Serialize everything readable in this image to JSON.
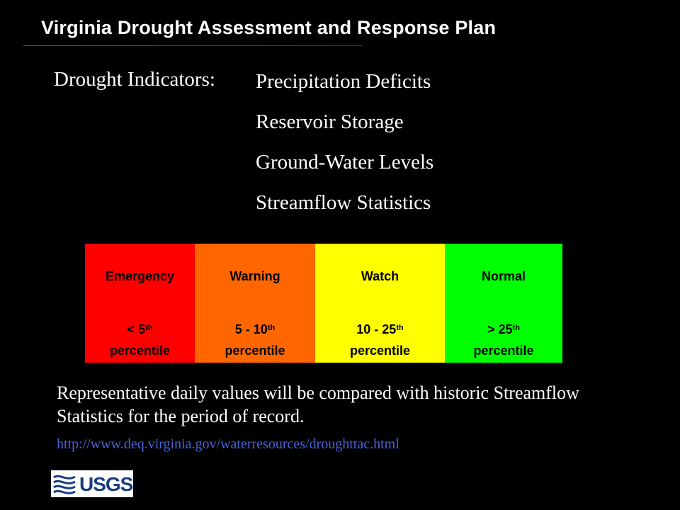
{
  "slide": {
    "title": "Virginia Drought Assessment and Response Plan",
    "indicators_label": "Drought Indicators:",
    "indicators": [
      "Precipitation Deficits",
      "Reservoir Storage",
      "Ground-Water Levels",
      "Streamflow Statistics"
    ],
    "description": "Representative daily values will be compared with historic Streamflow Statistics for the period of record.",
    "url": "http://www.deq.virginia.gov/waterresources/droughttac.html",
    "logo_text": "USGS"
  },
  "levels": [
    {
      "name": "Emergency",
      "range": "< 5",
      "sup": "th",
      "unit": "percentile",
      "color": "#ff0000"
    },
    {
      "name": "Warning",
      "range": "5 - 10",
      "sup": "th",
      "unit": "percentile",
      "color": "#ff6600"
    },
    {
      "name": "Watch",
      "range": "10 - 25",
      "sup": "th",
      "unit": "percentile",
      "color": "#ffff00"
    },
    {
      "name": "Normal",
      "range": "> 25",
      "sup": "th",
      "unit": "percentile",
      "color": "#00ff00"
    }
  ],
  "colors": {
    "background": "#000000",
    "link": "#4a63d6",
    "usgs_blue": "#1a3d7c"
  }
}
